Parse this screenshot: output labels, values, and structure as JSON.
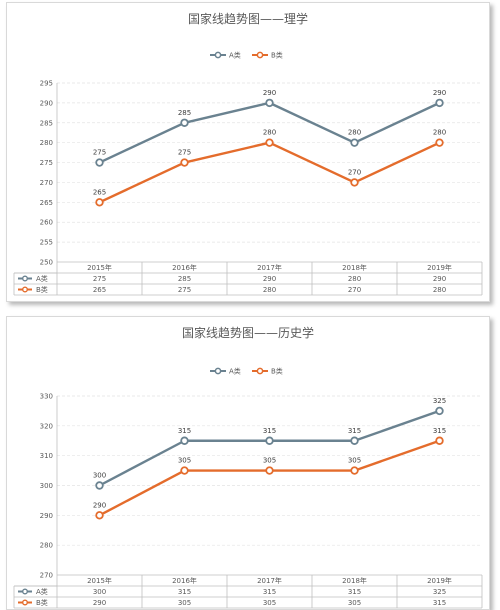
{
  "chart_data": [
    {
      "type": "line",
      "title": "国家线趋势图——理学",
      "categories": [
        "2015年",
        "2016年",
        "2017年",
        "2018年",
        "2019年"
      ],
      "series": [
        {
          "name": "A类",
          "values": [
            275,
            285,
            290,
            280,
            290
          ],
          "color": "#6a8290"
        },
        {
          "name": "B类",
          "values": [
            265,
            275,
            280,
            270,
            280
          ],
          "color": "#e46c2c"
        }
      ],
      "yticks": [
        250,
        255,
        260,
        265,
        270,
        275,
        280,
        285,
        290,
        295
      ],
      "ylim": [
        250,
        295
      ],
      "grid": true,
      "legend": "top-center",
      "data_table": true
    },
    {
      "type": "line",
      "title": "国家线趋势图——历史学",
      "categories": [
        "2015年",
        "2016年",
        "2017年",
        "2018年",
        "2019年"
      ],
      "series": [
        {
          "name": "A类",
          "values": [
            300,
            315,
            315,
            315,
            325
          ],
          "color": "#6a8290"
        },
        {
          "name": "B类",
          "values": [
            290,
            305,
            305,
            305,
            315
          ],
          "color": "#e46c2c"
        }
      ],
      "yticks": [
        270,
        280,
        290,
        300,
        310,
        320,
        330
      ],
      "ylim": [
        270,
        330
      ],
      "grid": true,
      "legend": "top-center",
      "data_table": true
    }
  ]
}
